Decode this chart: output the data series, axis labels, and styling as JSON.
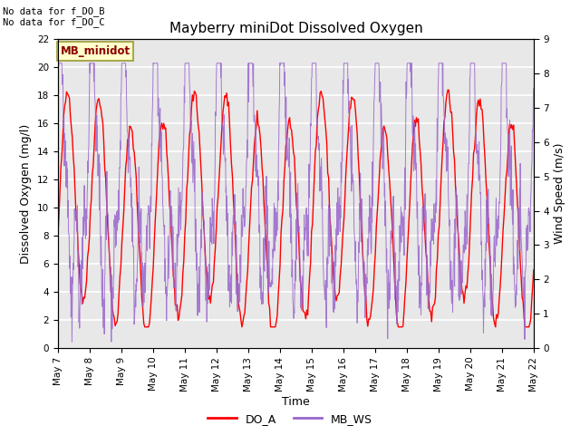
{
  "title": "Mayberry miniDot Dissolved Oxygen",
  "xlabel": "Time",
  "ylabel_left": "Dissolved Oxygen (mg/l)",
  "ylabel_right": "Wind Speed (m/s)",
  "annotation1": "No data for f_DO_B",
  "annotation2": "No data for f_DO_C",
  "station_label": "MB_minidot",
  "legend_entries": [
    "DO_A",
    "MB_WS"
  ],
  "do_color": "#ff0000",
  "ws_color": "#9966cc",
  "ylim_left": [
    0,
    22
  ],
  "ylim_right": [
    0.0,
    9.0
  ],
  "yticks_left": [
    0,
    2,
    4,
    6,
    8,
    10,
    12,
    14,
    16,
    18,
    20,
    22
  ],
  "yticks_right": [
    0.0,
    1.0,
    2.0,
    3.0,
    4.0,
    5.0,
    6.0,
    7.0,
    8.0,
    9.0
  ],
  "background_color": "#e8e8e8",
  "fig_background": "#ffffff",
  "grid_color": "#ffffff"
}
